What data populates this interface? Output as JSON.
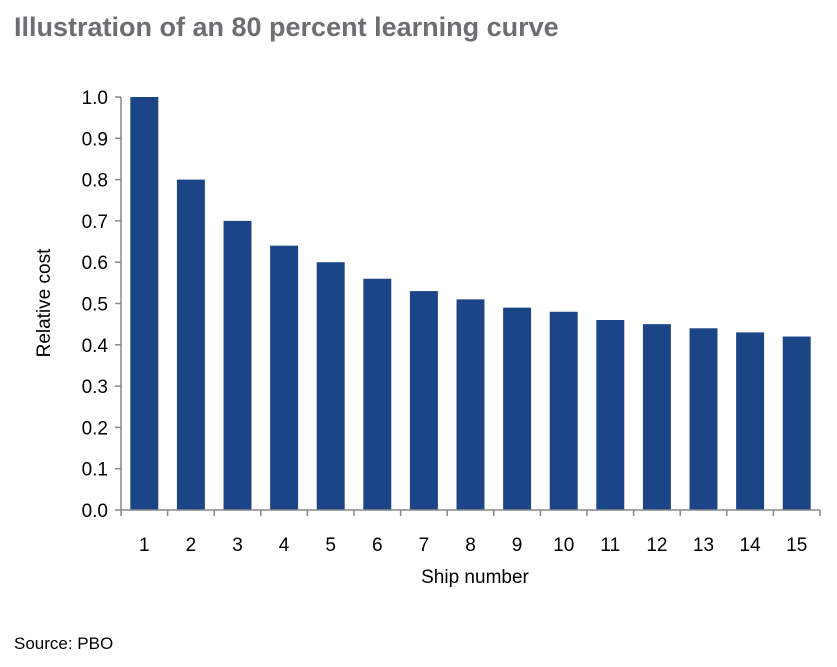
{
  "title": "Illustration of an 80 percent learning curve",
  "source": "Source: PBO",
  "colors": {
    "bar": "#1c4587",
    "axis": "#888888",
    "title": "#6d6e71"
  },
  "chart_data": {
    "type": "bar",
    "title": "Illustration of an 80 percent learning curve",
    "xlabel": "Ship number",
    "ylabel": "Relative cost",
    "categories": [
      "1",
      "2",
      "3",
      "4",
      "5",
      "6",
      "7",
      "8",
      "9",
      "10",
      "11",
      "12",
      "13",
      "14",
      "15"
    ],
    "values": [
      1.0,
      0.8,
      0.7,
      0.64,
      0.6,
      0.56,
      0.53,
      0.51,
      0.49,
      0.48,
      0.46,
      0.45,
      0.44,
      0.43,
      0.42
    ],
    "ylim": [
      0,
      1.0
    ],
    "yticks": [
      "0.0",
      "0.1",
      "0.2",
      "0.3",
      "0.4",
      "0.5",
      "0.6",
      "0.7",
      "0.8",
      "0.9",
      "1.0"
    ],
    "grid": false,
    "legend": "none"
  }
}
